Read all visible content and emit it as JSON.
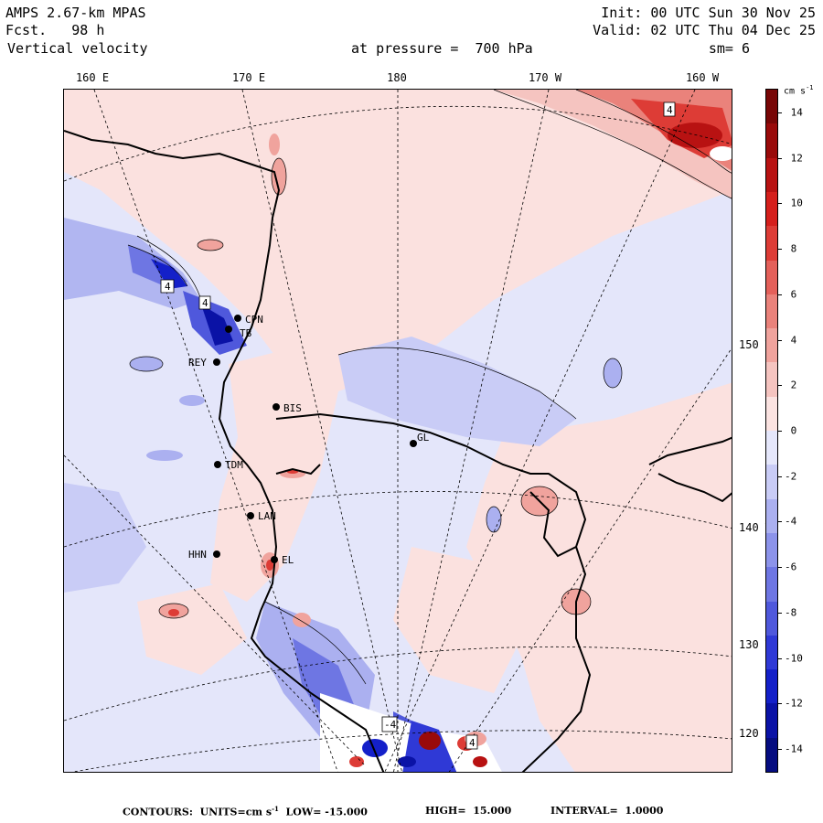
{
  "header": {
    "model": "AMPS 2.67-km MPAS",
    "forecast_label": "Fcst.",
    "forecast_hours": "98 h",
    "variable": "Vertical velocity",
    "init": "Init: 00 UTC Sun 30 Nov 25",
    "valid": "Valid: 02 UTC Thu 04 Dec 25",
    "level_label": "at pressure =",
    "level_value": "700 hPa",
    "smoothing": "sm= 6"
  },
  "longitude_labels": [
    "160 E",
    "170 E",
    "180",
    "170 W",
    "160 W"
  ],
  "latitude_labels": [
    "150 W",
    "140 W",
    "130 W",
    "120 W"
  ],
  "stations": [
    {
      "id": "CPN"
    },
    {
      "id": "TB"
    },
    {
      "id": "REY"
    },
    {
      "id": "BIS"
    },
    {
      "id": "GL"
    },
    {
      "id": "TDM"
    },
    {
      "id": "LAN"
    },
    {
      "id": "HHN"
    },
    {
      "id": "EL"
    }
  ],
  "colorbar": {
    "unit": "cm s",
    "unit_exp": "-1",
    "ticks": [
      "14",
      "12",
      "10",
      "8",
      "6",
      "4",
      "2",
      "0",
      "-2",
      "-4",
      "-6",
      "-8",
      "-10",
      "-12",
      "-14"
    ],
    "range": [
      -15,
      15
    ],
    "colors_positive": [
      "#fbe3e1",
      "#f5c4c0",
      "#f0a39d",
      "#ea827b",
      "#e4605a",
      "#dd3c36",
      "#d51f1c",
      "#b81212",
      "#990a0a",
      "#780606"
    ],
    "colors_negative": [
      "#e5e7fb",
      "#c9ccf6",
      "#abb0f0",
      "#8c93ea",
      "#6e76e3",
      "#4f58dc",
      "#2f39d6",
      "#1420c9",
      "#0a12a6",
      "#050c80"
    ]
  },
  "contour_labels": [
    "4",
    "4",
    "-4",
    "4",
    "4"
  ],
  "footer": {
    "contours_label": "CONTOURS:",
    "units_label": "UNITS=cm s",
    "units_exp": "-1",
    "low_label": "LOW=",
    "low_value": "-15.000",
    "high_label": "HIGH=",
    "high_value": "15.000",
    "interval_label": "INTERVAL=",
    "interval_value": "1.0000"
  }
}
